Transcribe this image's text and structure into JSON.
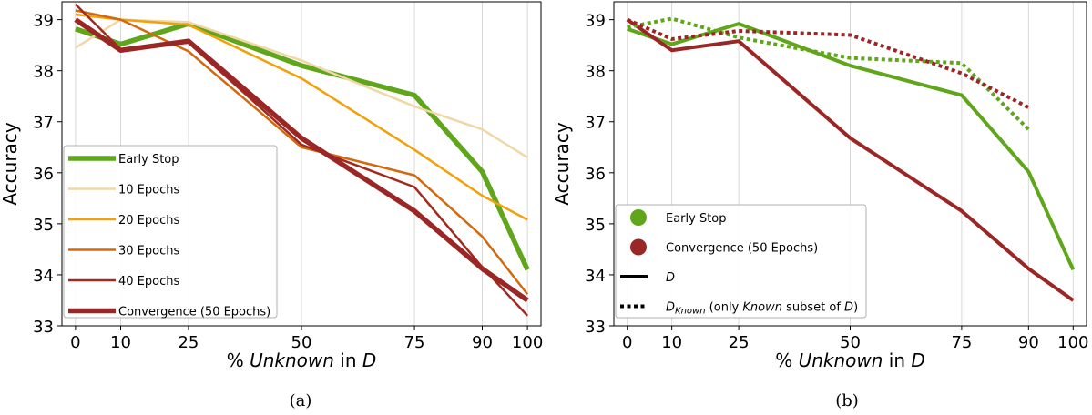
{
  "chart_data": [
    {
      "type": "line",
      "caption": "(a)",
      "xlabel": {
        "prefix": "% ",
        "italic": "Unknown",
        "middle": " in ",
        "italic2": "D"
      },
      "ylabel": "Accuracy",
      "x": [
        0,
        10,
        25,
        50,
        75,
        90,
        100
      ],
      "xlim": [
        -3,
        103
      ],
      "ylim": [
        33,
        39.35
      ],
      "yticks": [
        33,
        34,
        35,
        36,
        37,
        38,
        39
      ],
      "grid": "vertical",
      "legend_position": "lower-left",
      "series": [
        {
          "name": "Early Stop",
          "color": "#5fa61b",
          "width": 5.5,
          "style": "solid",
          "values": [
            38.82,
            38.52,
            38.92,
            38.1,
            37.52,
            36.02,
            34.1
          ]
        },
        {
          "name": "10 Epochs",
          "color": "#efd7a6",
          "width": 2.5,
          "style": "solid",
          "values": [
            38.45,
            39.0,
            38.95,
            38.2,
            37.3,
            36.85,
            36.3
          ]
        },
        {
          "name": "20 Epochs",
          "color": "#f0a10b",
          "width": 2.5,
          "style": "solid",
          "values": [
            39.1,
            39.0,
            38.9,
            37.85,
            36.45,
            35.55,
            35.08
          ]
        },
        {
          "name": "30 Epochs",
          "color": "#d2690e",
          "width": 2.5,
          "style": "solid",
          "values": [
            39.18,
            39.0,
            38.38,
            36.5,
            35.95,
            34.75,
            33.62
          ]
        },
        {
          "name": "40 Epochs",
          "color": "#a02a20",
          "width": 2.5,
          "style": "solid",
          "values": [
            39.3,
            38.42,
            38.55,
            36.55,
            35.72,
            34.15,
            33.2
          ]
        },
        {
          "name": "Convergence (50 Epochs)",
          "color": "#9b2626",
          "width": 5.5,
          "style": "solid",
          "values": [
            39.0,
            38.4,
            38.58,
            36.68,
            35.25,
            34.12,
            33.5
          ]
        }
      ],
      "legend": [
        {
          "label": "Early Stop",
          "color": "#5fa61b",
          "width": 5.5,
          "marker": "line"
        },
        {
          "label": "10 Epochs",
          "color": "#efd7a6",
          "width": 2.5,
          "marker": "line"
        },
        {
          "label": "20 Epochs",
          "color": "#f0a10b",
          "width": 2.5,
          "marker": "line"
        },
        {
          "label": "30 Epochs",
          "color": "#d2690e",
          "width": 2.5,
          "marker": "line"
        },
        {
          "label": "40 Epochs",
          "color": "#a02a20",
          "width": 2.5,
          "marker": "line"
        },
        {
          "label": "Convergence (50 Epochs)",
          "color": "#9b2626",
          "width": 5.5,
          "marker": "line"
        }
      ]
    },
    {
      "type": "line",
      "caption": "(b)",
      "xlabel": {
        "prefix": "% ",
        "italic": "Unknown",
        "middle": " in ",
        "italic2": "D"
      },
      "ylabel": "Accuracy",
      "x": [
        0,
        10,
        25,
        50,
        75,
        90,
        100
      ],
      "xlim": [
        -3,
        103
      ],
      "ylim": [
        33,
        39.35
      ],
      "yticks": [
        33,
        34,
        35,
        36,
        37,
        38,
        39
      ],
      "grid": "vertical",
      "legend_position": "lower-left",
      "series": [
        {
          "name": "Early Stop",
          "color": "#5fa61b",
          "width": 4,
          "style": "solid",
          "values": [
            38.82,
            38.52,
            38.92,
            38.1,
            37.52,
            36.02,
            34.1
          ]
        },
        {
          "name": "Convergence (50 Epochs)",
          "color": "#9b2626",
          "width": 4,
          "style": "solid",
          "values": [
            39.0,
            38.4,
            38.58,
            36.68,
            35.25,
            34.12,
            33.5
          ]
        },
        {
          "name": "Early Stop D_Known",
          "color": "#5fa61b",
          "width": 4,
          "style": "dotted",
          "x": [
            0,
            10,
            25,
            50,
            75,
            90
          ],
          "values": [
            38.85,
            39.02,
            38.65,
            38.25,
            38.15,
            36.85
          ]
        },
        {
          "name": "Convergence D_Known",
          "color": "#9b2626",
          "width": 4,
          "style": "dotted",
          "x": [
            0,
            10,
            25,
            50,
            75,
            90
          ],
          "values": [
            39.0,
            38.62,
            38.78,
            38.7,
            37.95,
            37.28
          ]
        }
      ],
      "legend": [
        {
          "label": "Early Stop",
          "color": "#5fa61b",
          "marker": "circle"
        },
        {
          "label": "Convergence (50 Epochs)",
          "color": "#9b2626",
          "marker": "circle"
        },
        {
          "label": "D",
          "italic": true,
          "color": "#000000",
          "marker": "line"
        },
        {
          "label_parts": [
            "D",
            "Known",
            " (only ",
            "Known",
            " subset of ",
            "D",
            ")"
          ],
          "color": "#000000",
          "marker": "dotted"
        }
      ]
    }
  ]
}
